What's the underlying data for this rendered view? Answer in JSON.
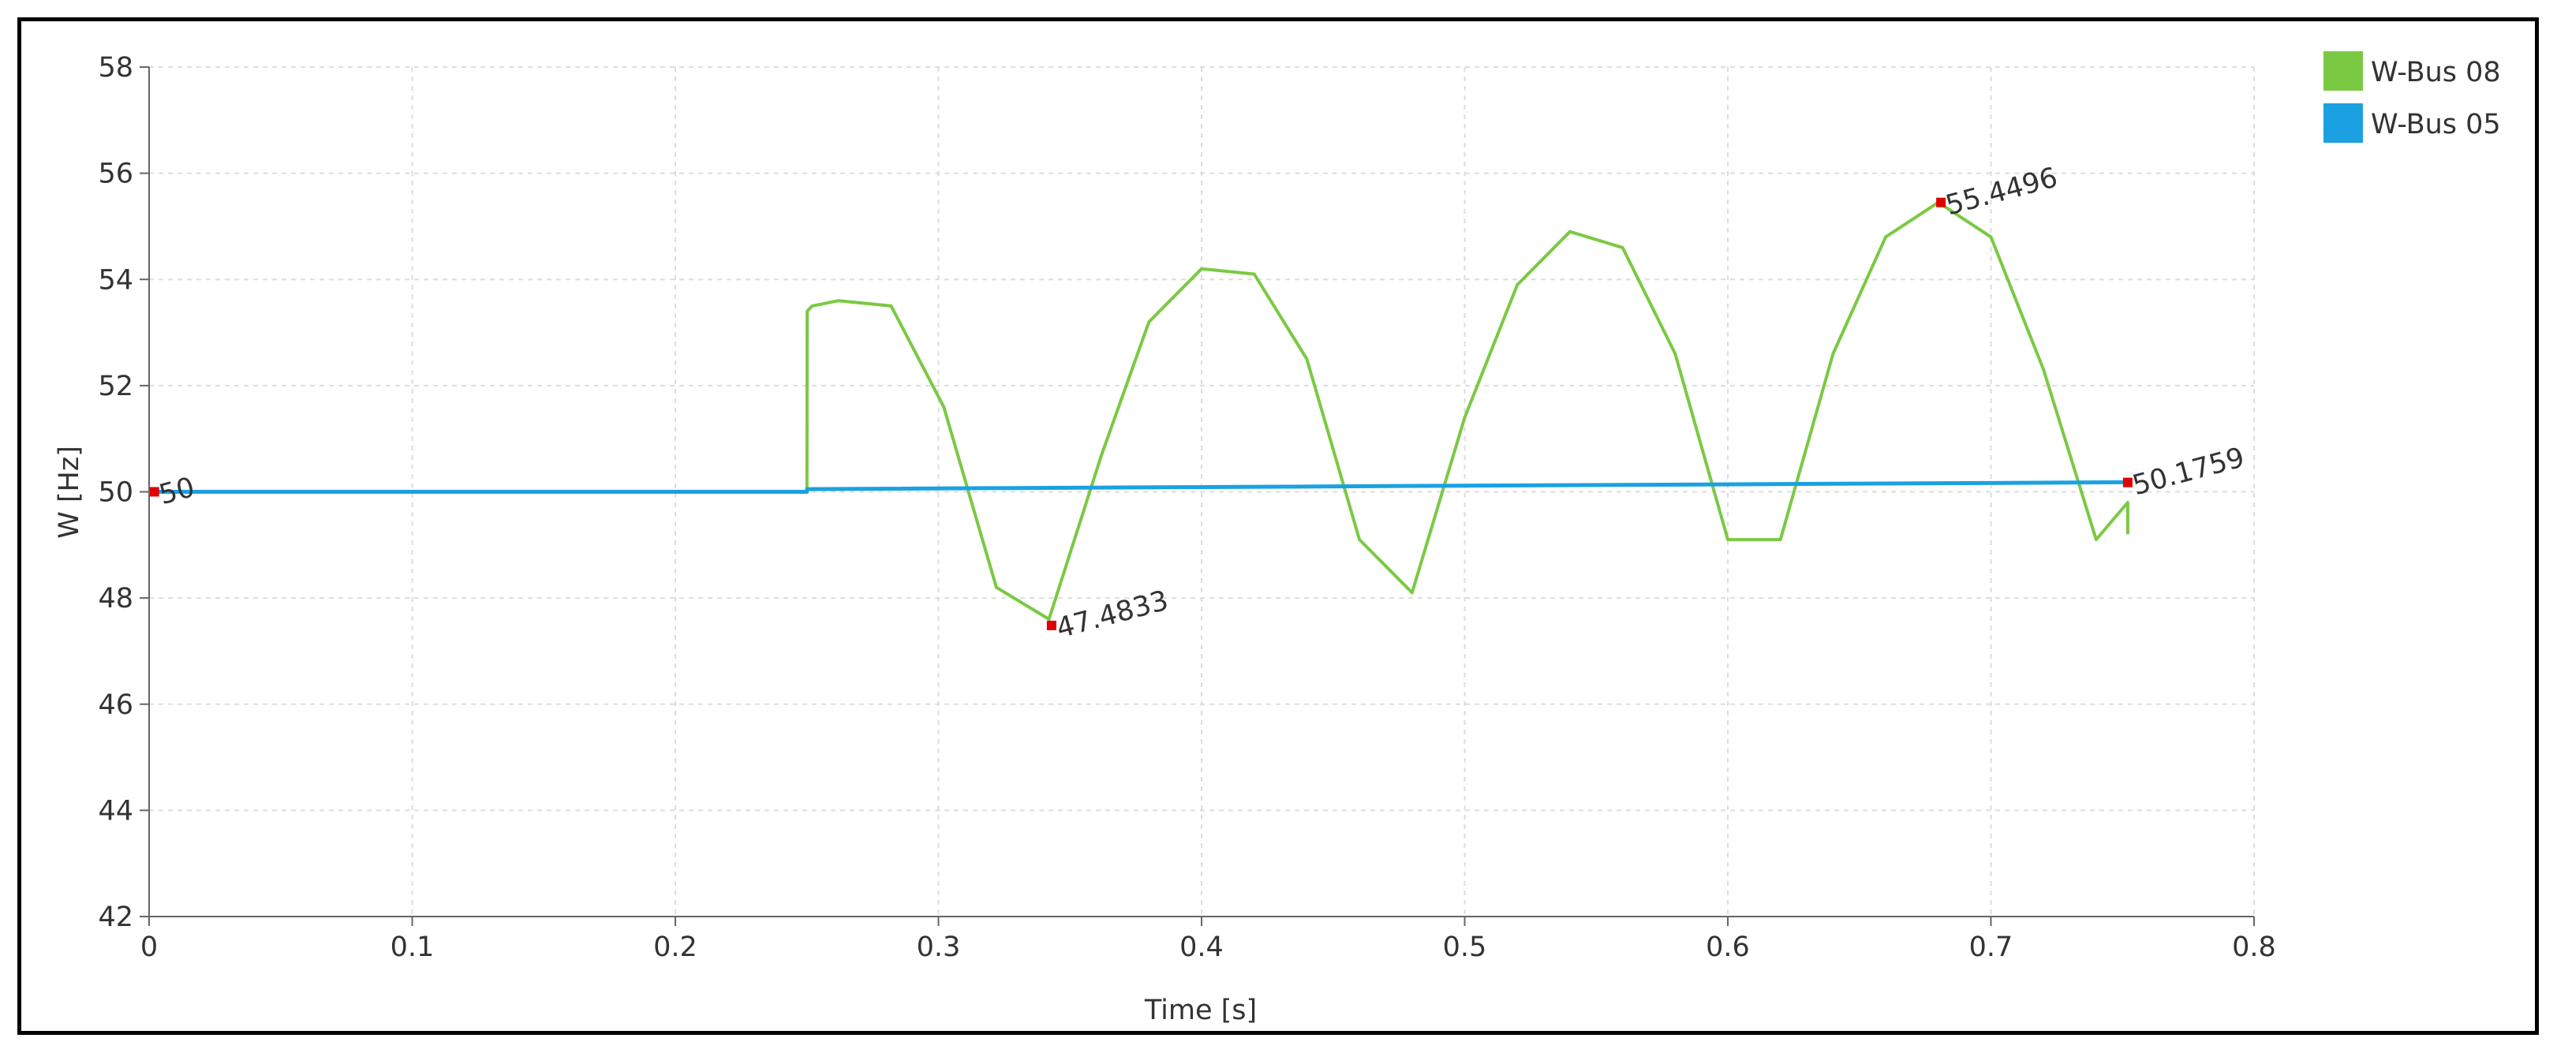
{
  "chart_data": {
    "type": "line",
    "title": "",
    "xlabel": "Time [s]",
    "ylabel": "W [Hz]",
    "xlim": [
      0,
      0.8
    ],
    "ylim": [
      42,
      58
    ],
    "xticks": [
      0,
      0.1,
      0.2,
      0.3,
      0.4,
      0.5,
      0.6,
      0.7,
      0.8
    ],
    "yticks": [
      42,
      44,
      46,
      48,
      50,
      52,
      54,
      56,
      58
    ],
    "xtick_labels": [
      "0",
      "0.1",
      "0.2",
      "0.3",
      "0.4",
      "0.5",
      "0.6",
      "0.7",
      "0.8"
    ],
    "ytick_labels": [
      "42",
      "44",
      "46",
      "48",
      "50",
      "52",
      "54",
      "56",
      "58"
    ],
    "grid": true,
    "legend_position": "top-right",
    "series": [
      {
        "name": "W-Bus 08",
        "color": "#7ac943",
        "x": [
          0,
          0.25,
          0.2501,
          0.252,
          0.262,
          0.282,
          0.302,
          0.322,
          0.342,
          0.362,
          0.38,
          0.4,
          0.42,
          0.44,
          0.46,
          0.48,
          0.5,
          0.52,
          0.54,
          0.56,
          0.58,
          0.6,
          0.62,
          0.64,
          0.66,
          0.68,
          0.7,
          0.72,
          0.74,
          0.752,
          0.752
        ],
        "y": [
          50.0,
          50.0,
          53.4,
          53.5,
          53.6,
          53.5,
          51.6,
          48.2,
          47.6,
          50.7,
          53.2,
          54.2,
          54.1,
          52.5,
          49.1,
          48.1,
          51.4,
          53.9,
          54.9,
          54.6,
          52.6,
          49.1,
          49.1,
          52.6,
          54.8,
          55.45,
          54.8,
          52.3,
          49.1,
          49.8,
          49.2
        ]
      },
      {
        "name": "W-Bus 05",
        "color": "#1ba1e2",
        "x": [
          0,
          0.25,
          0.2501,
          0.752
        ],
        "y": [
          50.0,
          50.0,
          50.05,
          50.18
        ]
      }
    ],
    "annotations": [
      {
        "x": 0.002,
        "y": 50.0,
        "label": "50"
      },
      {
        "x": 0.343,
        "y": 47.4833,
        "label": "47.4833"
      },
      {
        "x": 0.681,
        "y": 55.4496,
        "label": "55.4496"
      },
      {
        "x": 0.752,
        "y": 50.1759,
        "label": "50.1759"
      }
    ]
  }
}
